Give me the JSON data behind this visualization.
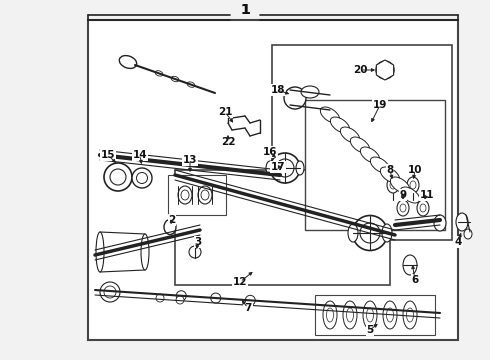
{
  "bg_color": "#f2f2f2",
  "diagram_bg": "#ffffff",
  "line_color": "#222222",
  "text_color": "#111111",
  "border_color": "#444444",
  "fig_width": 4.9,
  "fig_height": 3.6,
  "dpi": 100
}
